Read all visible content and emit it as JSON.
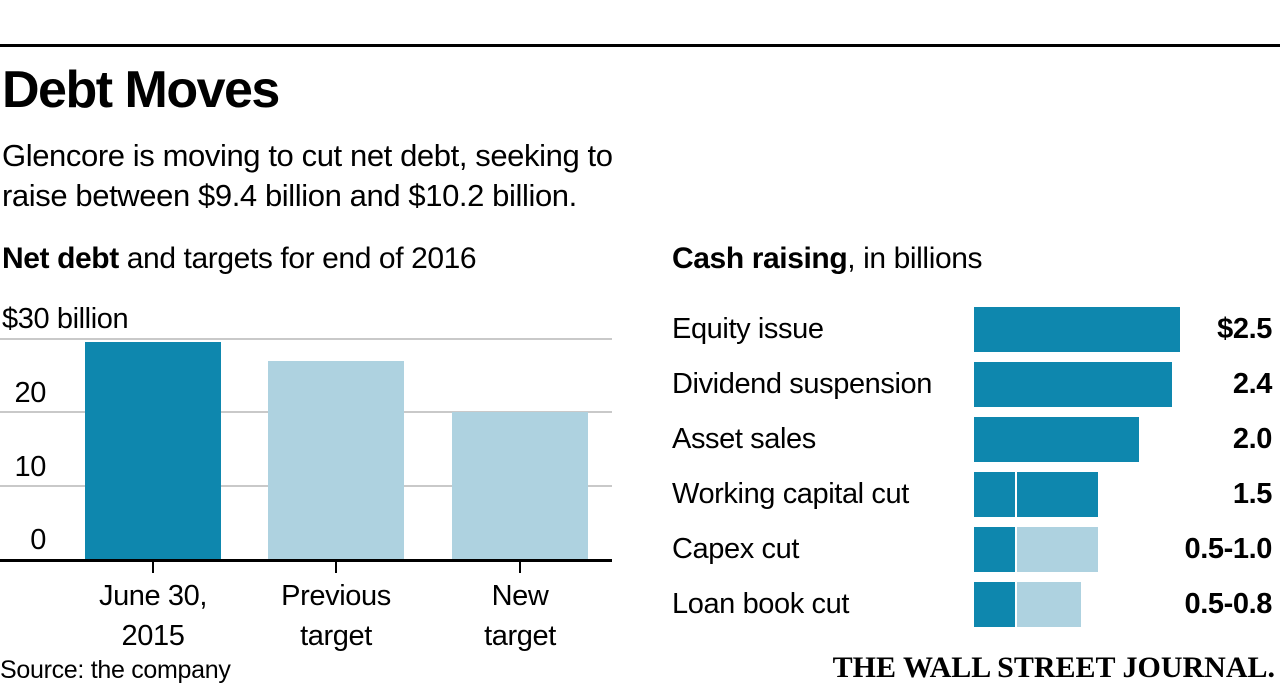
{
  "page": {
    "title": "Debt Moves",
    "subtitle_line1": "Glencore is moving to cut net debt, seeking to",
    "subtitle_line2": "raise between $9.4 billion and $10.2 billion.",
    "source": "Source: the company",
    "brand": "THE WALL STREET JOURNAL."
  },
  "colors": {
    "dark_teal": "#0e87ae",
    "light_blue": "#aed2e0",
    "grid_gray": "#c9c9c9",
    "axis_black": "#000000"
  },
  "chart_data": [
    {
      "type": "bar",
      "title_bold": "Net debt",
      "title_rest": " and targets for end of 2016",
      "axis_top_label": "$30 billion",
      "ylim": [
        0,
        30
      ],
      "grid": true,
      "yticks": [
        {
          "label": "20",
          "value": 20
        },
        {
          "label": "10",
          "value": 10
        },
        {
          "label": "0",
          "value": 0
        }
      ],
      "categories": [
        {
          "lines": [
            "June 30,",
            "2015"
          ],
          "value": 29.6,
          "style": "dark"
        },
        {
          "lines": [
            "Previous",
            "target"
          ],
          "value": 27,
          "style": "light"
        },
        {
          "lines": [
            "New",
            "target"
          ],
          "value": 20,
          "style": "light"
        }
      ],
      "unit": "billions USD"
    },
    {
      "type": "bar-horizontal",
      "title_bold": "Cash raising",
      "title_rest": ", in billions",
      "rows": [
        {
          "label": "Equity issue",
          "value_label": "$2.5",
          "segments": [
            {
              "style": "dark",
              "units": 2.5
            }
          ]
        },
        {
          "label": "Dividend suspension",
          "value_label": "2.4",
          "segments": [
            {
              "style": "dark",
              "units": 2.4
            }
          ]
        },
        {
          "label": "Asset sales",
          "value_label": "2.0",
          "segments": [
            {
              "style": "dark",
              "units": 2.0
            }
          ]
        },
        {
          "label": "Working capital cut",
          "value_label": "1.5",
          "segments": [
            {
              "style": "dark",
              "units": 0.5
            },
            {
              "style": "dark",
              "units": 1.0
            }
          ]
        },
        {
          "label": "Capex cut",
          "value_label": "0.5-1.0",
          "segments": [
            {
              "style": "dark",
              "units": 0.5
            },
            {
              "style": "light",
              "units": 1.0
            }
          ]
        },
        {
          "label": "Loan book cut",
          "value_label": "0.5-0.8",
          "segments": [
            {
              "style": "dark",
              "units": 0.5
            },
            {
              "style": "light",
              "units": 0.8
            }
          ]
        }
      ]
    }
  ]
}
